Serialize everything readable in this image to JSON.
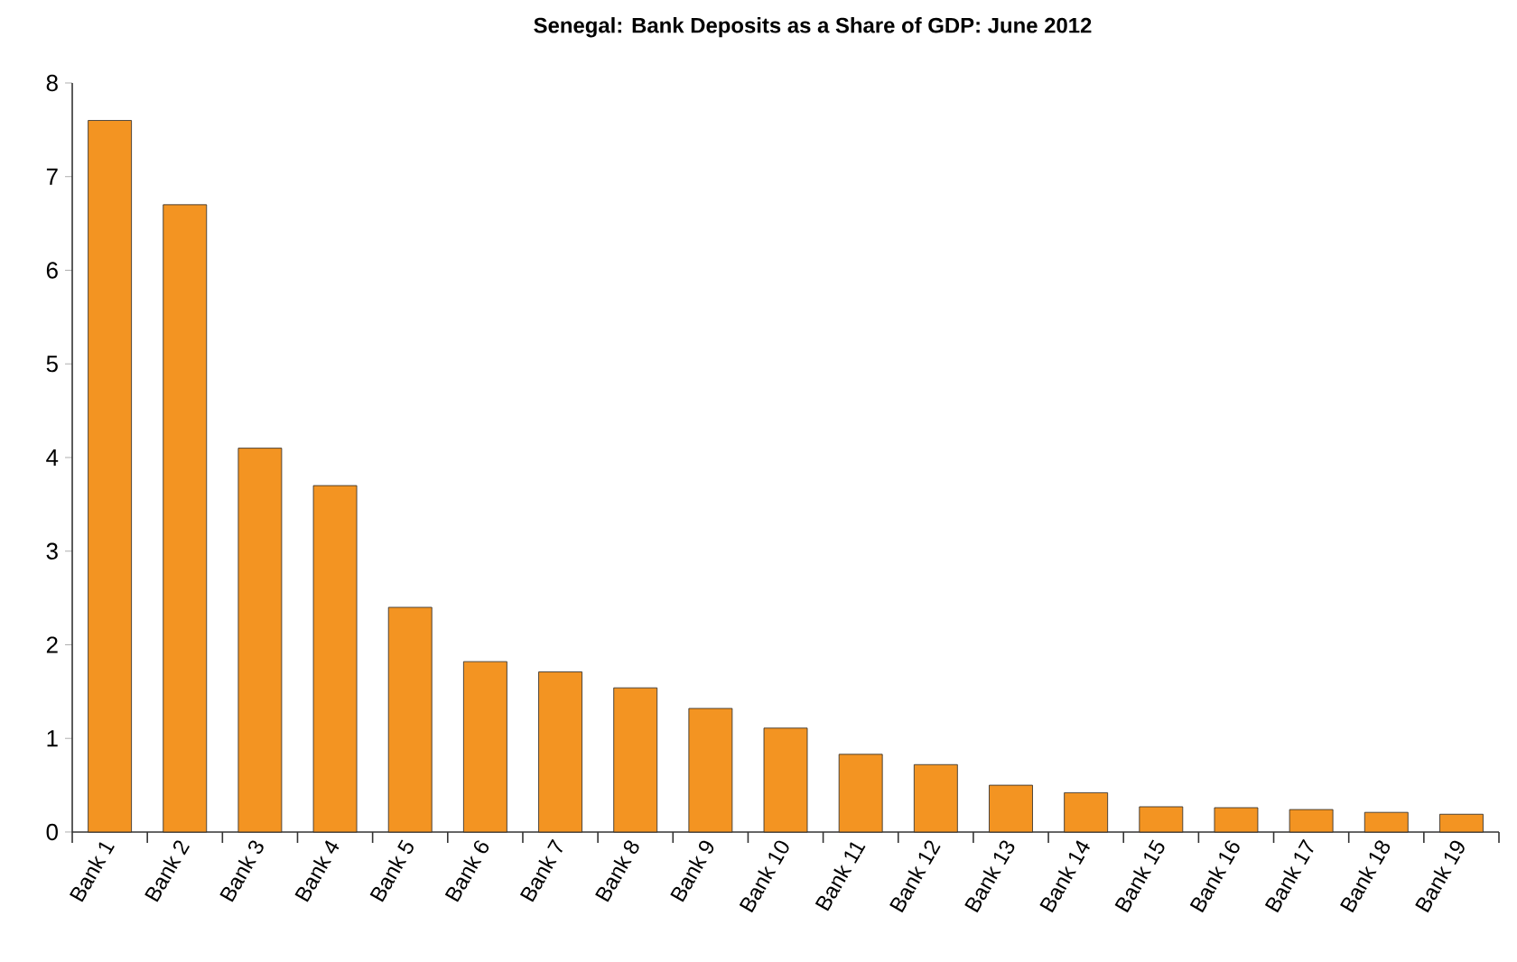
{
  "chart_data": {
    "type": "bar",
    "title": "Senegal: Bank Deposits as a Share of GDP: June 2012",
    "categories": [
      "Bank 1",
      "Bank 2",
      "Bank 3",
      "Bank 4",
      "Bank 5",
      "Bank 6",
      "Bank 7",
      "Bank 8",
      "Bank 9",
      "Bank 10",
      "Bank 11",
      "Bank 12",
      "Bank 13",
      "Bank 14",
      "Bank 15",
      "Bank 16",
      "Bank 17",
      "Bank 18",
      "Bank 19"
    ],
    "values": [
      7.6,
      6.7,
      4.1,
      3.7,
      2.4,
      1.82,
      1.71,
      1.54,
      1.32,
      1.11,
      0.83,
      0.72,
      0.5,
      0.42,
      0.27,
      0.26,
      0.24,
      0.21,
      0.19
    ],
    "color": "#f39422",
    "ylim": [
      0,
      8
    ],
    "yticks": [
      0,
      1,
      2,
      3,
      4,
      5,
      6,
      7,
      8
    ],
    "grid": false
  }
}
